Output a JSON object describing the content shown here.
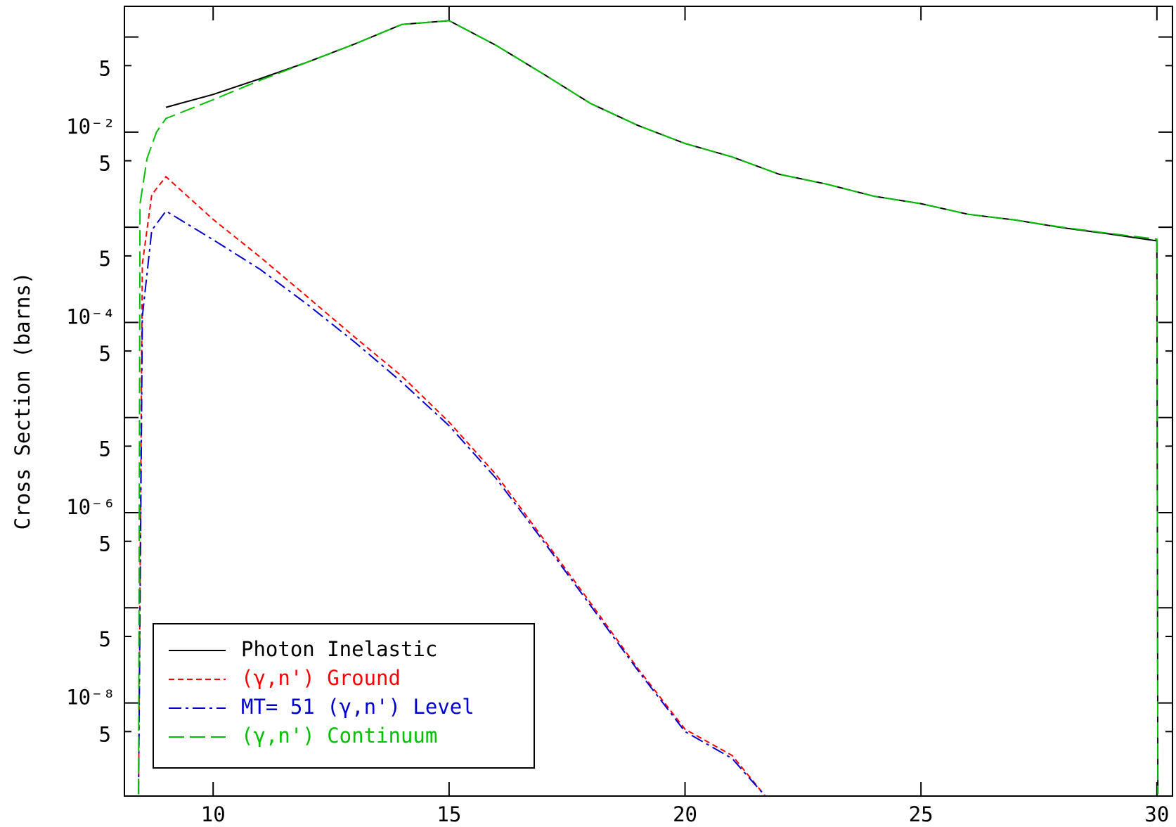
{
  "chart_data": {
    "type": "line",
    "ylabel": "Cross Section (barns)",
    "xlim": [
      8.12,
      30.33
    ],
    "xticks": [
      10,
      15,
      20,
      25,
      30
    ],
    "ylim": [
      1.05e-09,
      0.21
    ],
    "ylog": true,
    "grid": false,
    "legend": "lower left",
    "yticks": [
      {
        "value": 0.1,
        "label": null
      },
      {
        "value": 0.05,
        "label": "5"
      },
      {
        "value": 0.01,
        "label": "10⁻²"
      },
      {
        "value": 0.005,
        "label": "5"
      },
      {
        "value": 0.001,
        "label": null
      },
      {
        "value": 0.0005,
        "label": "5"
      },
      {
        "value": 0.0001,
        "label": "10⁻⁴"
      },
      {
        "value": 5e-05,
        "label": "5"
      },
      {
        "value": 1e-05,
        "label": null
      },
      {
        "value": 5e-06,
        "label": "5"
      },
      {
        "value": 1e-06,
        "label": "10⁻⁶"
      },
      {
        "value": 5e-07,
        "label": "5"
      },
      {
        "value": 1e-07,
        "label": null
      },
      {
        "value": 5e-08,
        "label": "5"
      },
      {
        "value": 1e-08,
        "label": "10⁻⁸"
      },
      {
        "value": 5e-09,
        "label": "5"
      }
    ],
    "series": [
      {
        "name": "Photon Inelastic",
        "color": "#000000",
        "style": "solid",
        "x": [
          9,
          10,
          11,
          12,
          13,
          14,
          15,
          16,
          17,
          18,
          19,
          20,
          21,
          22,
          23,
          24,
          25,
          26,
          27,
          28,
          29,
          30,
          30.02
        ],
        "values": [
          0.01824,
          0.0249,
          0.0365,
          0.0545,
          0.0843,
          0.1355,
          0.1485,
          0.0815,
          0.0408,
          0.02,
          0.01178,
          0.0076,
          0.00548,
          0.0036,
          0.00284,
          0.00212,
          0.00177,
          0.00137,
          0.00119,
          0.00099,
          0.00085,
          0.00072,
          1.1e-09
        ]
      },
      {
        "name": "(γ,n') Ground",
        "color": "#ff0000",
        "style": "dashed",
        "x": [
          8.42,
          8.5,
          8.7,
          9,
          10,
          11,
          12,
          13,
          14,
          15,
          16,
          17,
          18,
          19,
          20,
          21,
          21.7
        ],
        "values": [
          1.1e-09,
          0.00041,
          0.0022,
          0.0034,
          0.00121,
          0.000485,
          0.000185,
          7e-05,
          2.72e-05,
          8.95e-06,
          2.5e-06,
          5.3e-07,
          1.12e-07,
          2.3e-08,
          5.3e-09,
          2.8e-09,
          1.05e-09
        ]
      },
      {
        "name": "MT= 51 (γ,n') Level",
        "color": "#0000cc",
        "style": "dashdot",
        "x": [
          8.42,
          8.5,
          8.7,
          9,
          10,
          11,
          12,
          13,
          14,
          15,
          16,
          17,
          18,
          19,
          20,
          21,
          21.7
        ],
        "values": [
          1.1e-09,
          0.000115,
          0.00093,
          0.00148,
          0.00074,
          0.00036,
          0.000154,
          6.2e-05,
          2.35e-05,
          8.2e-06,
          2.28e-06,
          5e-07,
          1.05e-07,
          2.2e-08,
          5e-09,
          2.6e-09,
          1.05e-09
        ]
      },
      {
        "name": "(γ,n') Continuum",
        "color": "#00c000",
        "style": "longdash",
        "x": [
          8.42,
          8.45,
          8.6,
          8.8,
          9,
          10,
          11,
          12,
          13,
          14,
          15,
          16,
          17,
          18,
          19,
          20,
          21,
          22,
          23,
          24,
          25,
          26,
          27,
          28,
          29,
          30,
          30.02
        ],
        "values": [
          1.1e-09,
          0.00177,
          0.0053,
          0.01,
          0.0139,
          0.0219,
          0.0351,
          0.0545,
          0.0843,
          0.1355,
          0.1485,
          0.0815,
          0.0408,
          0.02,
          0.01178,
          0.0076,
          0.00548,
          0.0036,
          0.00284,
          0.00212,
          0.00177,
          0.00137,
          0.00119,
          0.001,
          0.00086,
          0.00075,
          1.1e-09
        ]
      }
    ]
  }
}
